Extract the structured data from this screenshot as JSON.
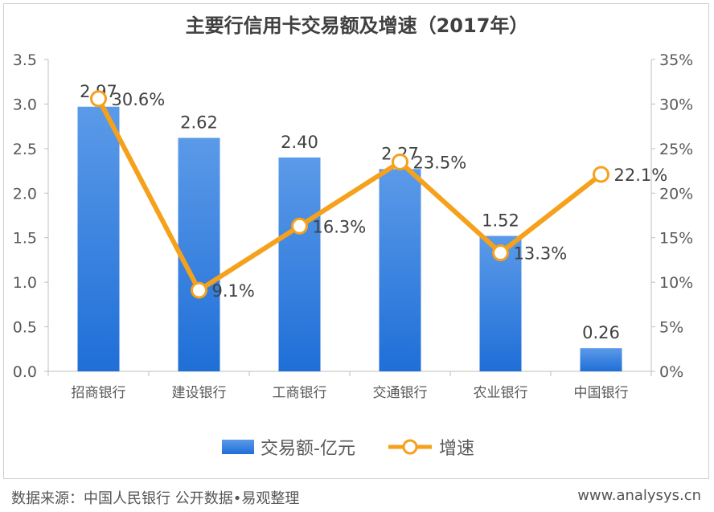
{
  "chart_data": {
    "type": "bar+line",
    "title": "主要行信用卡交易额及增速（2017年）",
    "categories": [
      "招商银行",
      "建设银行",
      "工商银行",
      "交通银行",
      "农业银行",
      "中国银行"
    ],
    "series": [
      {
        "name": "交易额-亿元",
        "type": "bar",
        "axis": "left",
        "values": [
          2.97,
          2.62,
          2.4,
          2.27,
          1.52,
          0.26
        ],
        "labels": [
          "2.97",
          "2.62",
          "2.40",
          "2.27",
          "1.52",
          "0.26"
        ]
      },
      {
        "name": "增速",
        "type": "line",
        "axis": "right",
        "values": [
          30.6,
          9.1,
          16.3,
          23.5,
          13.3,
          22.1
        ],
        "labels": [
          "30.6%",
          "9.1%",
          "16.3%",
          "23.5%",
          "13.3%",
          "22.1%"
        ]
      }
    ],
    "y_left": {
      "range": [
        0,
        3.5
      ],
      "ticks": [
        "0.0",
        "0.5",
        "1.0",
        "1.5",
        "2.0",
        "2.5",
        "3.0",
        "3.5"
      ]
    },
    "y_right": {
      "range": [
        0,
        35
      ],
      "ticks": [
        "0%",
        "5%",
        "10%",
        "15%",
        "20%",
        "25%",
        "30%",
        "35%"
      ]
    },
    "grid": false,
    "legend_position": "bottom",
    "colors": {
      "bar": "#1f6fd8",
      "bar_light": "#5b9ae8",
      "line": "#f5a11c"
    }
  },
  "footer": {
    "source": "数据来源：中国人民银行 公开数据•易观整理",
    "site": "www.analysys.cn"
  }
}
